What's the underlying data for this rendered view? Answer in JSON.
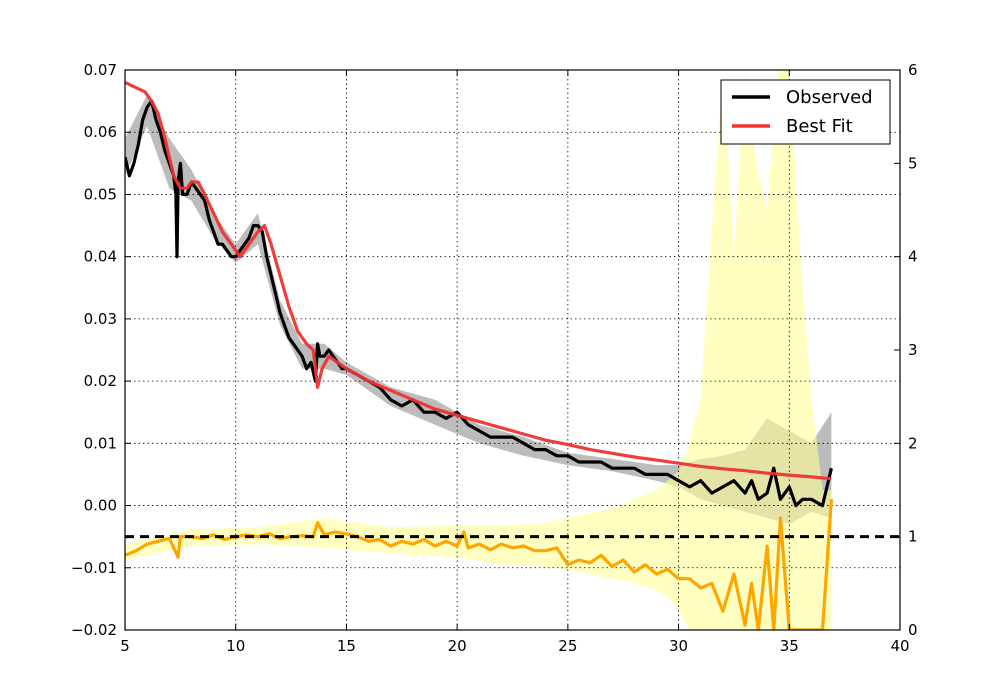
{
  "chart_data": {
    "type": "line",
    "title": "",
    "xlabel": "",
    "ylabel": "",
    "xlim": [
      5,
      40
    ],
    "ylim": [
      -0.02,
      0.07
    ],
    "y2lim": [
      0,
      6
    ],
    "grid": true,
    "legend_placement": "top-right",
    "x_ticks": [
      5,
      10,
      15,
      20,
      25,
      30,
      35,
      40
    ],
    "y_ticks": [
      -0.02,
      -0.01,
      0.0,
      0.01,
      0.02,
      0.03,
      0.04,
      0.05,
      0.06,
      0.07
    ],
    "y_tick_labels": [
      "−0.02",
      "−0.01",
      "0.00",
      "0.01",
      "0.02",
      "0.03",
      "0.04",
      "0.05",
      "0.06",
      "0.07"
    ],
    "y2_ticks": [
      0,
      1,
      2,
      3,
      4,
      5,
      6
    ],
    "y2_tick_labels": [
      "0",
      "1",
      "2",
      "3",
      "4",
      "5",
      "6"
    ],
    "colors": {
      "observed": "#000000",
      "observed_band": "#a6a6a6",
      "best_fit": "#ee3333",
      "ratio": "#ffa500",
      "ratio_band": "#ffff99",
      "reference": "#000000"
    },
    "reference_line": {
      "axis": "right",
      "y": 1.0
    },
    "series": [
      {
        "name": "Observed",
        "axis": "left",
        "x": [
          5.0,
          5.2,
          5.4,
          5.6,
          5.8,
          6.0,
          6.2,
          6.4,
          6.6,
          6.8,
          7.0,
          7.2,
          7.3,
          7.35,
          7.4,
          7.5,
          7.6,
          7.8,
          8.0,
          8.2,
          8.4,
          8.6,
          8.8,
          9.0,
          9.2,
          9.4,
          9.6,
          9.8,
          10.0,
          10.2,
          10.4,
          10.6,
          10.8,
          11.0,
          11.2,
          11.4,
          11.6,
          11.8,
          12.0,
          12.2,
          12.4,
          12.6,
          12.8,
          13.0,
          13.2,
          13.4,
          13.6,
          13.7,
          13.8,
          14.0,
          14.2,
          14.4,
          14.6,
          14.8,
          15.0,
          15.5,
          16.0,
          16.5,
          17.0,
          17.5,
          18.0,
          18.5,
          19.0,
          19.5,
          20.0,
          20.5,
          21.0,
          21.5,
          22.0,
          22.5,
          23.0,
          23.5,
          24.0,
          24.5,
          25.0,
          25.5,
          26.0,
          26.5,
          27.0,
          27.5,
          28.0,
          28.5,
          29.0,
          29.5,
          30.0,
          30.5,
          31.0,
          31.5,
          32.0,
          32.5,
          33.0,
          33.3,
          33.6,
          34.0,
          34.3,
          34.6,
          35.0,
          35.3,
          35.6,
          36.0,
          36.5,
          36.9
        ],
        "y": [
          0.056,
          0.053,
          0.055,
          0.058,
          0.062,
          0.064,
          0.065,
          0.062,
          0.06,
          0.057,
          0.055,
          0.053,
          0.05,
          0.04,
          0.052,
          0.055,
          0.05,
          0.05,
          0.052,
          0.051,
          0.05,
          0.049,
          0.046,
          0.044,
          0.042,
          0.042,
          0.041,
          0.04,
          0.04,
          0.041,
          0.042,
          0.043,
          0.045,
          0.045,
          0.044,
          0.04,
          0.037,
          0.034,
          0.031,
          0.029,
          0.027,
          0.026,
          0.025,
          0.024,
          0.022,
          0.023,
          0.02,
          0.026,
          0.024,
          0.024,
          0.025,
          0.024,
          0.023,
          0.022,
          0.022,
          0.021,
          0.02,
          0.019,
          0.017,
          0.016,
          0.017,
          0.015,
          0.015,
          0.014,
          0.015,
          0.013,
          0.012,
          0.011,
          0.011,
          0.011,
          0.01,
          0.009,
          0.009,
          0.008,
          0.008,
          0.007,
          0.007,
          0.007,
          0.006,
          0.006,
          0.006,
          0.005,
          0.005,
          0.005,
          0.004,
          0.003,
          0.004,
          0.002,
          0.003,
          0.004,
          0.002,
          0.004,
          0.001,
          0.002,
          0.006,
          0.001,
          0.003,
          0.0,
          0.001,
          0.001,
          0.0,
          0.006
        ]
      },
      {
        "name": "Best Fit",
        "axis": "left",
        "x": [
          5.0,
          5.3,
          5.6,
          5.9,
          6.2,
          6.5,
          6.8,
          7.0,
          7.2,
          7.5,
          7.8,
          8.0,
          8.3,
          8.6,
          9.0,
          9.4,
          9.8,
          10.2,
          10.6,
          11.0,
          11.3,
          11.6,
          12.0,
          12.4,
          12.8,
          13.2,
          13.5,
          13.7,
          13.9,
          14.2,
          14.6,
          15.0,
          16.0,
          17.0,
          18.0,
          19.0,
          20.0,
          21.0,
          22.0,
          23.0,
          24.0,
          25.0,
          26.0,
          27.0,
          28.0,
          29.0,
          30.0,
          31.0,
          32.0,
          33.0,
          34.0,
          35.0,
          36.0,
          36.9
        ],
        "y": [
          0.068,
          0.0675,
          0.067,
          0.0665,
          0.065,
          0.063,
          0.059,
          0.056,
          0.053,
          0.051,
          0.051,
          0.052,
          0.052,
          0.05,
          0.047,
          0.044,
          0.042,
          0.04,
          0.042,
          0.044,
          0.045,
          0.042,
          0.037,
          0.032,
          0.028,
          0.026,
          0.025,
          0.019,
          0.022,
          0.024,
          0.023,
          0.022,
          0.02,
          0.0185,
          0.017,
          0.0155,
          0.0145,
          0.0135,
          0.0125,
          0.0115,
          0.0105,
          0.0098,
          0.009,
          0.0084,
          0.0078,
          0.0073,
          0.0068,
          0.0063,
          0.0059,
          0.0056,
          0.0052,
          0.0049,
          0.0046,
          0.0043
        ]
      },
      {
        "name": "",
        "axis": "right",
        "x": [
          5.0,
          5.5,
          6.0,
          6.5,
          7.0,
          7.4,
          7.5,
          8.0,
          8.5,
          9.0,
          9.5,
          10.0,
          10.5,
          11.0,
          11.5,
          12.0,
          12.5,
          13.0,
          13.5,
          13.7,
          14.0,
          14.5,
          15.0,
          15.5,
          16.0,
          16.5,
          17.0,
          17.5,
          18.0,
          18.5,
          19.0,
          19.5,
          20.0,
          20.3,
          20.5,
          21.0,
          21.5,
          22.0,
          22.5,
          23.0,
          23.5,
          24.0,
          24.5,
          25.0,
          25.5,
          26.0,
          26.5,
          27.0,
          27.5,
          28.0,
          28.5,
          29.0,
          29.5,
          30.0,
          30.5,
          31.0,
          31.5,
          32.0,
          32.5,
          33.0,
          33.3,
          33.6,
          34.0,
          34.3,
          34.6,
          35.0,
          35.3,
          35.6,
          36.0,
          36.5,
          36.9
        ],
        "y": [
          0.8,
          0.85,
          0.92,
          0.95,
          0.98,
          0.78,
          1.0,
          1.0,
          0.98,
          1.02,
          0.97,
          1.0,
          1.02,
          1.0,
          1.03,
          0.98,
          1.0,
          1.01,
          1.0,
          1.15,
          1.02,
          1.05,
          1.03,
          1.0,
          0.95,
          0.97,
          0.9,
          0.95,
          0.92,
          0.97,
          0.9,
          0.95,
          0.9,
          1.05,
          0.88,
          0.92,
          0.86,
          0.92,
          0.88,
          0.9,
          0.85,
          0.85,
          0.88,
          0.7,
          0.75,
          0.72,
          0.8,
          0.68,
          0.75,
          0.62,
          0.7,
          0.6,
          0.65,
          0.55,
          0.55,
          0.45,
          0.5,
          0.2,
          0.6,
          0.05,
          0.5,
          0.0,
          0.9,
          0.0,
          1.2,
          0.0,
          0.0,
          0.0,
          0.0,
          0.0,
          1.4
        ]
      }
    ],
    "bands": [
      {
        "axis": "left",
        "color": "#a6a6a6",
        "x": [
          5.0,
          6.0,
          7.0,
          8.0,
          9.0,
          10.0,
          11.0,
          12.0,
          13.0,
          14.0,
          15.0,
          17.0,
          19.0,
          21.0,
          23.0,
          25.0,
          27.0,
          29.0,
          30.0,
          31.0,
          32.0,
          33.0,
          34.0,
          35.0,
          36.0,
          36.9
        ],
        "upper": [
          0.059,
          0.066,
          0.059,
          0.054,
          0.047,
          0.042,
          0.047,
          0.033,
          0.026,
          0.026,
          0.023,
          0.019,
          0.017,
          0.013,
          0.011,
          0.0085,
          0.0075,
          0.0065,
          0.0065,
          0.0075,
          0.008,
          0.009,
          0.014,
          0.012,
          0.01,
          0.015
        ],
        "lower": [
          0.053,
          0.061,
          0.051,
          0.049,
          0.043,
          0.039,
          0.042,
          0.029,
          0.022,
          0.022,
          0.021,
          0.016,
          0.013,
          0.01,
          0.008,
          0.0065,
          0.0055,
          0.004,
          0.003,
          0.001,
          0.0,
          -0.001,
          -0.002,
          -0.003,
          -0.001,
          -0.002
        ]
      },
      {
        "axis": "right",
        "color": "#ffff99",
        "x": [
          5.0,
          8.0,
          11.0,
          14.0,
          17.0,
          20.0,
          22.0,
          24.0,
          26.0,
          27.0,
          28.0,
          29.0,
          29.5,
          30.0,
          30.5,
          31.0,
          31.5,
          32.0,
          32.5,
          33.0,
          33.5,
          34.0,
          34.5,
          35.0,
          35.5,
          36.0,
          36.5,
          36.9
        ],
        "upper": [
          0.92,
          1.08,
          1.1,
          1.2,
          1.1,
          1.12,
          1.12,
          1.15,
          1.25,
          1.3,
          1.4,
          1.5,
          1.6,
          1.7,
          2.0,
          2.5,
          4.3,
          6.0,
          4.0,
          6.0,
          5.0,
          4.5,
          6.0,
          6.0,
          4.0,
          2.5,
          1.5,
          1.5
        ],
        "lower": [
          0.75,
          0.9,
          0.92,
          0.88,
          0.82,
          0.78,
          0.7,
          0.68,
          0.6,
          0.55,
          0.5,
          0.42,
          0.35,
          0.2,
          0.0,
          0.0,
          0.0,
          0.0,
          0.0,
          0.0,
          0.0,
          0.0,
          0.0,
          0.0,
          0.0,
          0.0,
          0.0,
          0.0
        ]
      }
    ]
  }
}
